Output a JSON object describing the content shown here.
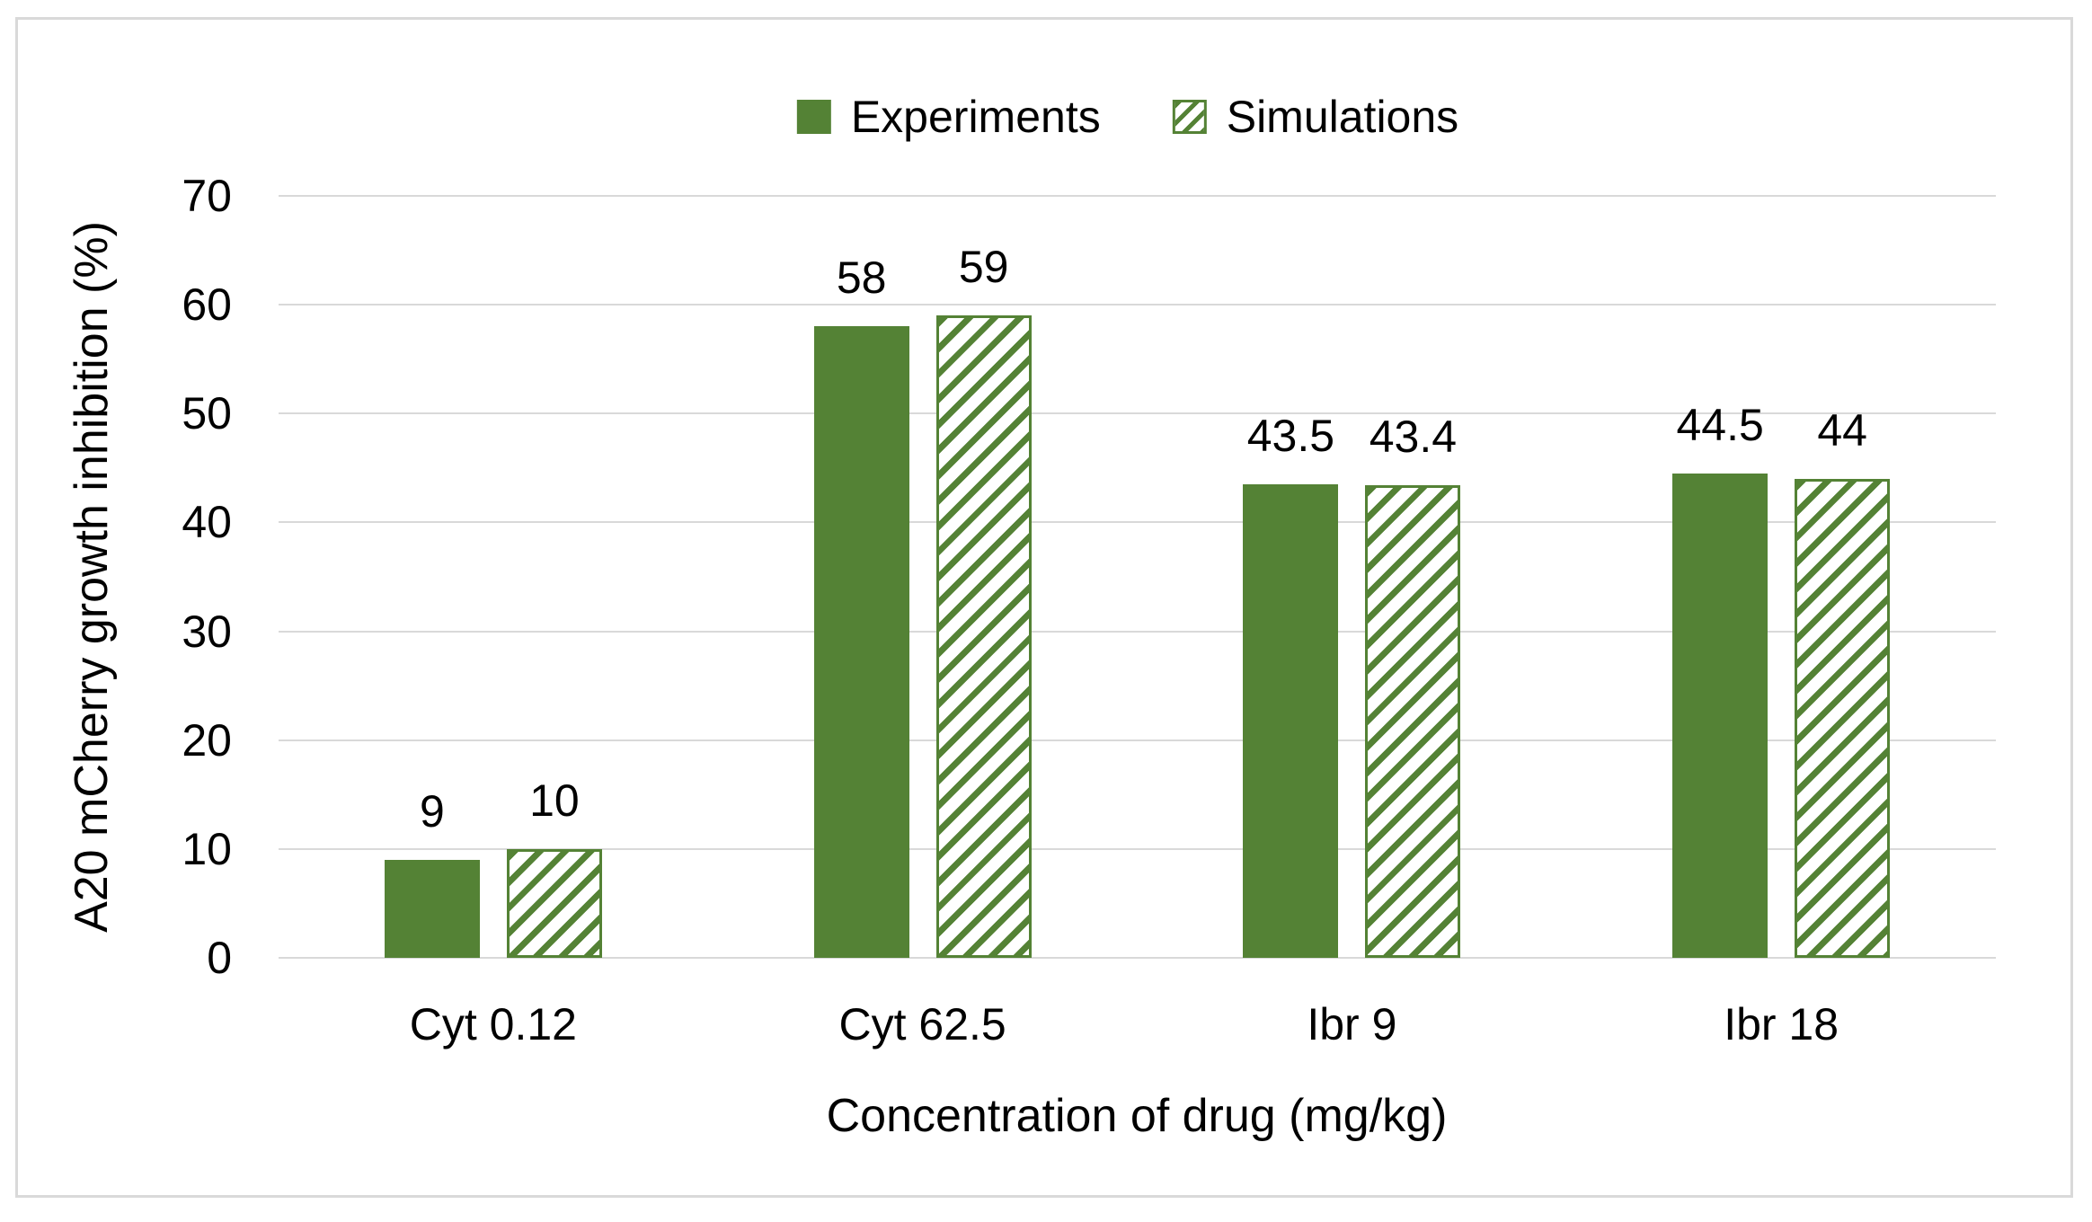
{
  "colors": {
    "series_green": "#548235",
    "gridline": "#d9d9d9",
    "figure_border": "#d9d9d9",
    "text": "#000000"
  },
  "legend": {
    "items": [
      {
        "label": "Experiments",
        "swatch": "solid"
      },
      {
        "label": "Simulations",
        "swatch": "hatched"
      }
    ]
  },
  "chart_data": {
    "type": "bar",
    "title": "",
    "categories": [
      "Cyt 0.12",
      "Cyt 62.5",
      "Ibr 9",
      "Ibr 18"
    ],
    "series": [
      {
        "name": "Experiments",
        "style": "solid",
        "values": [
          9,
          58,
          43.5,
          44.5
        ],
        "labels": [
          "9",
          "58",
          "43.5",
          "44.5"
        ]
      },
      {
        "name": "Simulations",
        "style": "hatched",
        "values": [
          10,
          59,
          43.4,
          44
        ],
        "labels": [
          "10",
          "59",
          "43.4",
          "44"
        ]
      }
    ],
    "xlabel": "Concentration of drug (mg/kg)",
    "ylabel": "A20 mCherry growth inhibition (%)",
    "ylim": [
      0,
      70
    ],
    "yticks": [
      0,
      10,
      20,
      30,
      40,
      50,
      60,
      70
    ],
    "grid": true,
    "legend_position": "top-center"
  }
}
